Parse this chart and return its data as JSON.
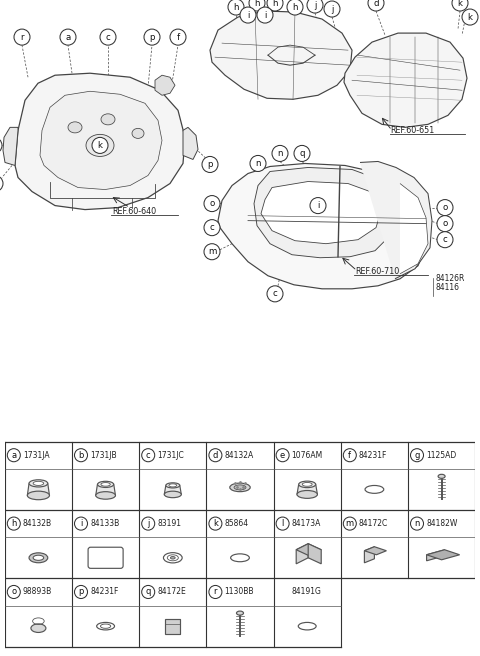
{
  "bg_color": "#ffffff",
  "fig_width": 4.8,
  "fig_height": 6.56,
  "dpi": 100,
  "table_rows": [
    [
      {
        "label": "a",
        "part": "1731JA",
        "shape": "grommet_a"
      },
      {
        "label": "b",
        "part": "1731JB",
        "shape": "grommet_b"
      },
      {
        "label": "c",
        "part": "1731JC",
        "shape": "grommet_c"
      },
      {
        "label": "d",
        "part": "84132A",
        "shape": "grommet_d"
      },
      {
        "label": "e",
        "part": "1076AM",
        "shape": "grommet_e"
      },
      {
        "label": "f",
        "part": "84231F",
        "shape": "oval_f"
      },
      {
        "label": "g",
        "part": "1125AD",
        "shape": "screw_g"
      }
    ],
    [
      {
        "label": "h",
        "part": "84132B",
        "shape": "ring_h"
      },
      {
        "label": "i",
        "part": "84133B",
        "shape": "rect_i"
      },
      {
        "label": "j",
        "part": "83191",
        "shape": "grommet_j"
      },
      {
        "label": "k",
        "part": "85864",
        "shape": "oval_k"
      },
      {
        "label": "l",
        "part": "84173A",
        "shape": "block_l"
      },
      {
        "label": "m",
        "part": "84172C",
        "shape": "block_m"
      },
      {
        "label": "n",
        "part": "84182W",
        "shape": "pad_n"
      }
    ],
    [
      {
        "label": "o",
        "part": "98893B",
        "shape": "dome_o"
      },
      {
        "label": "p",
        "part": "84231F",
        "shape": "oval_ring_p"
      },
      {
        "label": "q",
        "part": "84172E",
        "shape": "cube_q"
      },
      {
        "label": "r",
        "part": "1130BB",
        "shape": "screw_r"
      },
      {
        "label": "",
        "part": "84191G",
        "shape": "oval_flat_s"
      },
      null,
      null
    ]
  ],
  "lc": "#444444",
  "tc": "#222222"
}
